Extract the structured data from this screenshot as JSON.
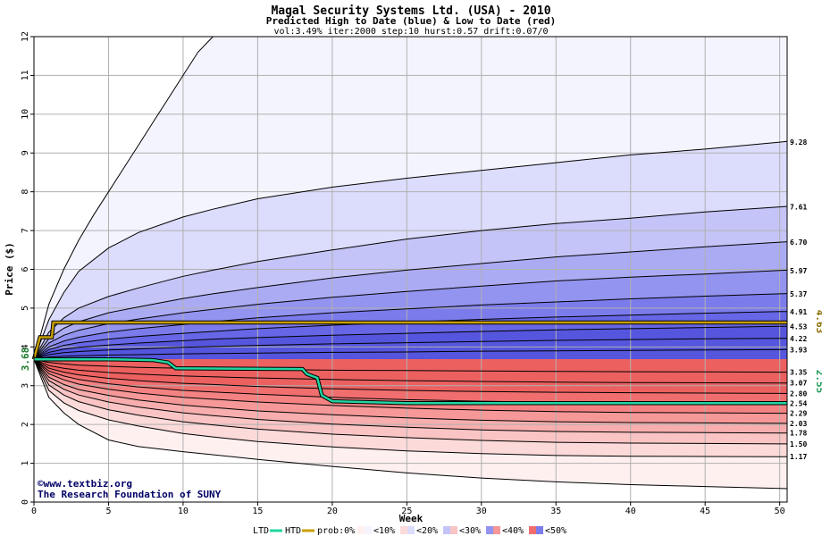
{
  "chart_data": {
    "type": "area",
    "title": "Magal Security Systems Ltd. (USA) - 2010",
    "subtitle": "Predicted High to Date (blue) &  Low to Date (red)",
    "params": "vol:3.49% iter:2000 step:10 hurst:0.57 drift:0.07/0",
    "xlabel": "Week",
    "ylabel": "Price ($)",
    "xlim": [
      0,
      50.5
    ],
    "ylim": [
      0,
      12
    ],
    "x_ticks": [
      0,
      5,
      10,
      15,
      20,
      25,
      30,
      35,
      40,
      45,
      50
    ],
    "y_ticks": [
      0,
      1,
      2,
      3,
      4,
      5,
      6,
      7,
      8,
      9,
      10,
      11,
      12
    ],
    "grid": true,
    "start_price": 3.68,
    "start_price_label": "3.68",
    "high_quantiles": {
      "weeks": [
        0,
        1,
        2,
        3,
        5,
        7,
        10,
        12,
        15,
        20,
        25,
        30,
        35,
        40,
        45,
        50
      ],
      "levels": [
        {
          "label": "9.28",
          "end": 9.28,
          "values": [
            3.68,
            4.7,
            5.4,
            5.95,
            6.55,
            6.95,
            7.35,
            7.55,
            7.82,
            8.12,
            8.35,
            8.55,
            8.75,
            8.95,
            9.1,
            9.28
          ]
        },
        {
          "label": "7.61",
          "end": 7.61,
          "values": [
            3.68,
            4.38,
            4.75,
            5.0,
            5.3,
            5.52,
            5.82,
            5.98,
            6.2,
            6.5,
            6.78,
            7.0,
            7.18,
            7.32,
            7.48,
            7.61
          ]
        },
        {
          "label": "6.70",
          "end": 6.7,
          "values": [
            3.68,
            4.22,
            4.48,
            4.65,
            4.88,
            5.03,
            5.25,
            5.37,
            5.53,
            5.78,
            5.98,
            6.15,
            6.32,
            6.45,
            6.58,
            6.7
          ]
        },
        {
          "label": "5.97",
          "end": 5.97,
          "values": [
            3.68,
            4.1,
            4.3,
            4.43,
            4.6,
            4.72,
            4.88,
            4.97,
            5.1,
            5.28,
            5.43,
            5.57,
            5.7,
            5.8,
            5.88,
            5.97
          ]
        },
        {
          "label": "5.37",
          "end": 5.37,
          "values": [
            3.68,
            4.0,
            4.15,
            4.25,
            4.38,
            4.47,
            4.58,
            4.65,
            4.75,
            4.88,
            4.98,
            5.08,
            5.16,
            5.24,
            5.31,
            5.37
          ]
        },
        {
          "label": "4.91",
          "end": 4.91,
          "values": [
            3.68,
            3.93,
            4.04,
            4.11,
            4.2,
            4.27,
            4.35,
            4.4,
            4.47,
            4.56,
            4.64,
            4.71,
            4.77,
            4.82,
            4.87,
            4.91
          ]
        },
        {
          "label": "4.53",
          "end": 4.53,
          "values": [
            3.68,
            3.86,
            3.94,
            3.99,
            4.05,
            4.1,
            4.16,
            4.2,
            4.24,
            4.3,
            4.35,
            4.4,
            4.44,
            4.47,
            4.5,
            4.53
          ]
        },
        {
          "label": "4.22",
          "end": 4.22,
          "values": [
            3.68,
            3.8,
            3.85,
            3.88,
            3.92,
            3.95,
            3.99,
            4.01,
            4.04,
            4.08,
            4.11,
            4.14,
            4.17,
            4.19,
            4.21,
            4.22
          ]
        },
        {
          "label": "3.93",
          "end": 3.93,
          "values": [
            3.68,
            3.74,
            3.76,
            3.77,
            3.79,
            3.8,
            3.82,
            3.83,
            3.84,
            3.86,
            3.87,
            3.89,
            3.9,
            3.91,
            3.92,
            3.93
          ]
        }
      ],
      "outer": {
        "weeks": [
          0,
          1,
          2,
          3,
          4,
          5,
          6,
          7,
          8,
          9,
          10,
          11,
          12
        ],
        "values": [
          3.68,
          5.1,
          6.0,
          6.75,
          7.4,
          8.0,
          8.6,
          9.2,
          9.8,
          10.4,
          11.0,
          11.6,
          12.0
        ]
      }
    },
    "low_quantiles": {
      "weeks": [
        0,
        1,
        2,
        3,
        5,
        7,
        10,
        12,
        15,
        20,
        25,
        30,
        35,
        40,
        45,
        50
      ],
      "levels": [
        {
          "label": "3.35",
          "end": 3.35,
          "values": [
            3.68,
            3.6,
            3.56,
            3.53,
            3.5,
            3.47,
            3.45,
            3.44,
            3.42,
            3.4,
            3.39,
            3.38,
            3.37,
            3.36,
            3.355,
            3.35
          ]
        },
        {
          "label": "3.07",
          "end": 3.07,
          "values": [
            3.68,
            3.52,
            3.45,
            3.4,
            3.34,
            3.3,
            3.25,
            3.23,
            3.2,
            3.16,
            3.13,
            3.11,
            3.09,
            3.08,
            3.075,
            3.07
          ]
        },
        {
          "label": "2.80",
          "end": 2.8,
          "values": [
            3.68,
            3.45,
            3.35,
            3.28,
            3.19,
            3.13,
            3.06,
            3.03,
            2.98,
            2.92,
            2.88,
            2.85,
            2.83,
            2.82,
            2.81,
            2.8
          ]
        },
        {
          "label": "2.54",
          "end": 2.54,
          "values": [
            3.68,
            3.38,
            3.25,
            3.16,
            3.05,
            2.97,
            2.88,
            2.84,
            2.78,
            2.7,
            2.64,
            2.6,
            2.57,
            2.56,
            2.55,
            2.54
          ]
        },
        {
          "label": "2.29",
          "end": 2.29,
          "values": [
            3.68,
            3.31,
            3.15,
            3.04,
            2.91,
            2.81,
            2.7,
            2.65,
            2.58,
            2.49,
            2.42,
            2.37,
            2.33,
            2.31,
            2.3,
            2.29
          ]
        },
        {
          "label": "2.03",
          "end": 2.03,
          "values": [
            3.68,
            3.22,
            3.03,
            2.9,
            2.75,
            2.63,
            2.5,
            2.44,
            2.35,
            2.25,
            2.17,
            2.11,
            2.07,
            2.05,
            2.04,
            2.03
          ]
        },
        {
          "label": "1.78",
          "end": 1.78,
          "values": [
            3.68,
            3.13,
            2.91,
            2.76,
            2.58,
            2.45,
            2.3,
            2.23,
            2.13,
            2.01,
            1.93,
            1.86,
            1.82,
            1.8,
            1.79,
            1.78
          ]
        },
        {
          "label": "1.50",
          "end": 1.5,
          "values": [
            3.68,
            3.02,
            2.76,
            2.59,
            2.38,
            2.24,
            2.07,
            1.99,
            1.88,
            1.75,
            1.66,
            1.59,
            1.54,
            1.52,
            1.51,
            1.5
          ]
        },
        {
          "label": "1.17",
          "end": 1.17,
          "values": [
            3.68,
            2.88,
            2.56,
            2.36,
            2.12,
            1.96,
            1.77,
            1.68,
            1.56,
            1.42,
            1.32,
            1.25,
            1.2,
            1.18,
            1.175,
            1.17
          ]
        }
      ],
      "outer": {
        "weeks": [
          0,
          1,
          2,
          3,
          5,
          7,
          10,
          15,
          20,
          25,
          30,
          35,
          40,
          45,
          50
        ],
        "values": [
          3.68,
          2.7,
          2.3,
          2.0,
          1.6,
          1.43,
          1.3,
          1.1,
          0.92,
          0.75,
          0.62,
          0.52,
          0.45,
          0.4,
          0.35
        ]
      }
    },
    "htd": {
      "label": "4.63",
      "points": [
        [
          0,
          3.68
        ],
        [
          0.4,
          4.25
        ],
        [
          1.2,
          4.25
        ],
        [
          1.3,
          4.63
        ],
        [
          50.5,
          4.63
        ]
      ]
    },
    "ltd": {
      "label": "2.55",
      "points": [
        [
          0,
          3.68
        ],
        [
          5,
          3.68
        ],
        [
          8,
          3.66
        ],
        [
          9,
          3.6
        ],
        [
          9.5,
          3.45
        ],
        [
          18,
          3.43
        ],
        [
          18.3,
          3.3
        ],
        [
          19,
          3.2
        ],
        [
          19.3,
          2.75
        ],
        [
          20,
          2.6
        ],
        [
          25,
          2.55
        ],
        [
          50.5,
          2.55
        ]
      ]
    }
  },
  "credit": {
    "symbol": "©",
    "site": "www.textbiz.org",
    "org": "The Research Foundation of SUNY"
  },
  "legend": {
    "ltd": "LTD",
    "htd": "HTD",
    "prob": "prob:0%",
    "bins": [
      "<10%",
      "<20%",
      "<30%",
      "<40%",
      "<50%"
    ]
  },
  "colors": {
    "htd": "#c8a000",
    "ltd": "#22d4a0",
    "grid": "#b0b0b0",
    "htd_label": "#8a6d00",
    "ltd_label": "#1a9a55",
    "start_label": "#1a7a2a",
    "blue_bands": [
      "#f4f4ff",
      "#dcdcfc",
      "#c4c4f8",
      "#ababf4",
      "#9393f0",
      "#7b7bec",
      "#6666e6",
      "#5555dd"
    ],
    "red_bands": [
      "#fff0f0",
      "#fcdada",
      "#fac4c4",
      "#f8aeae",
      "#f69898",
      "#f48282",
      "#f06e6e",
      "#ec6060"
    ]
  }
}
